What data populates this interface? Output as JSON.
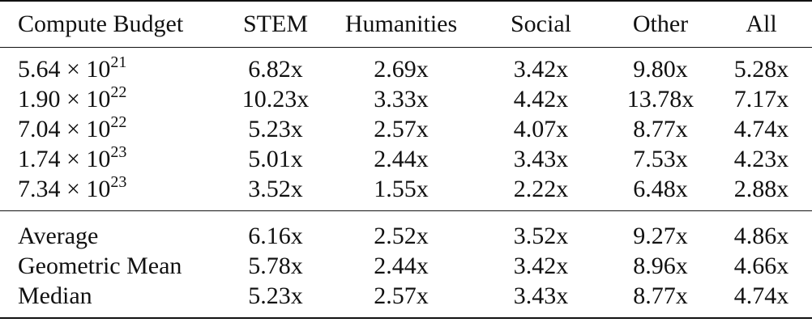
{
  "table": {
    "headers": [
      "Compute Budget",
      "STEM",
      "Humanities",
      "Social",
      "Other",
      "All"
    ],
    "budget_rows": [
      {
        "budget_base": "5.64 × 10",
        "budget_exp": "21",
        "values": [
          "6.82x",
          "2.69x",
          "3.42x",
          "9.80x",
          "5.28x"
        ]
      },
      {
        "budget_base": "1.90 × 10",
        "budget_exp": "22",
        "values": [
          "10.23x",
          "3.33x",
          "4.42x",
          "13.78x",
          "7.17x"
        ]
      },
      {
        "budget_base": "7.04 × 10",
        "budget_exp": "22",
        "values": [
          "5.23x",
          "2.57x",
          "4.07x",
          "8.77x",
          "4.74x"
        ]
      },
      {
        "budget_base": "1.74 × 10",
        "budget_exp": "23",
        "values": [
          "5.01x",
          "2.44x",
          "3.43x",
          "7.53x",
          "4.23x"
        ]
      },
      {
        "budget_base": "7.34 × 10",
        "budget_exp": "23",
        "values": [
          "3.52x",
          "1.55x",
          "2.22x",
          "6.48x",
          "2.88x"
        ]
      }
    ],
    "summary_rows": [
      {
        "label": "Average",
        "values": [
          "6.16x",
          "2.52x",
          "3.52x",
          "9.27x",
          "4.86x"
        ]
      },
      {
        "label": "Geometric Mean",
        "values": [
          "5.78x",
          "2.44x",
          "3.42x",
          "8.96x",
          "4.66x"
        ]
      },
      {
        "label": "Median",
        "values": [
          "5.23x",
          "2.57x",
          "3.43x",
          "8.77x",
          "4.74x"
        ]
      }
    ]
  }
}
